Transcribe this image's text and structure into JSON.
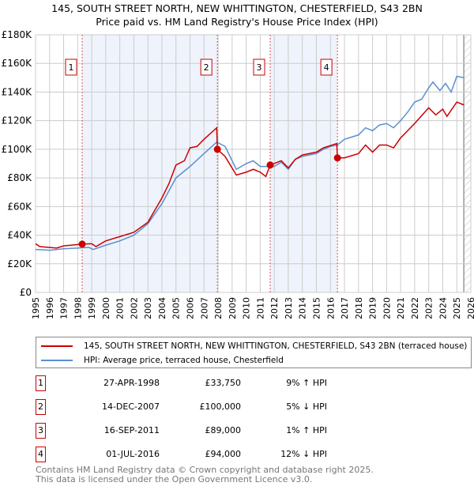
{
  "title_line1": "145, SOUTH STREET NORTH, NEW WHITTINGTON, CHESTERFIELD, S43 2BN",
  "title_line2": "Price paid vs. HM Land Registry's House Price Index (HPI)",
  "chart_data": {
    "type": "line",
    "xlim": [
      1995,
      2026
    ],
    "ylim": [
      0,
      180000
    ],
    "yticks": [
      0,
      20000,
      40000,
      60000,
      80000,
      100000,
      120000,
      140000,
      160000,
      180000
    ],
    "ytick_labels": [
      "£0",
      "£20K",
      "£40K",
      "£60K",
      "£80K",
      "£100K",
      "£120K",
      "£140K",
      "£160K",
      "£180K"
    ],
    "xticks": [
      "1995",
      "1996",
      "1997",
      "1998",
      "1999",
      "2000",
      "2001",
      "2002",
      "2003",
      "2004",
      "2005",
      "2006",
      "2007",
      "2008",
      "2009",
      "2010",
      "2011",
      "2012",
      "2013",
      "2014",
      "2015",
      "2016",
      "2017",
      "2018",
      "2019",
      "2020",
      "2021",
      "2022",
      "2023",
      "2024",
      "2025",
      "2026"
    ],
    "grid": true,
    "colors": {
      "property": "#cc0000",
      "hpi": "#5b8fd0",
      "shade": "#eef3fc"
    },
    "shaded_ranges": [
      [
        1998.32,
        2007.95
      ],
      [
        2011.71,
        2016.5
      ]
    ],
    "future_hatch_from": 2025.5,
    "series": [
      {
        "name": "145, SOUTH STREET NORTH, NEW WHITTINGTON, CHESTERFIELD, S43 2BN (terraced house)",
        "key": "property",
        "points": [
          [
            1995,
            34000
          ],
          [
            1995.3,
            32000
          ],
          [
            1996.5,
            31000
          ],
          [
            1997,
            32500
          ],
          [
            1998.32,
            33750
          ],
          [
            1999,
            34000
          ],
          [
            1999.3,
            32000
          ],
          [
            2000,
            36000
          ],
          [
            2001,
            39000
          ],
          [
            2002,
            42000
          ],
          [
            2003,
            49000
          ],
          [
            2004,
            66000
          ],
          [
            2004.5,
            76000
          ],
          [
            2005,
            89000
          ],
          [
            2005.6,
            92000
          ],
          [
            2006,
            101000
          ],
          [
            2006.5,
            102000
          ],
          [
            2007,
            107000
          ],
          [
            2007.9,
            115000
          ],
          [
            2007.95,
            100000
          ],
          [
            2008.5,
            95000
          ],
          [
            2009.3,
            82000
          ],
          [
            2010,
            84000
          ],
          [
            2010.5,
            86000
          ],
          [
            2011,
            84000
          ],
          [
            2011.4,
            81000
          ],
          [
            2011.71,
            89000
          ],
          [
            2012.5,
            92000
          ],
          [
            2013,
            87000
          ],
          [
            2013.5,
            93000
          ],
          [
            2014,
            96000
          ],
          [
            2015,
            98000
          ],
          [
            2015.5,
            101000
          ],
          [
            2016.45,
            104000
          ],
          [
            2016.5,
            94000
          ],
          [
            2017,
            94000
          ],
          [
            2018,
            97000
          ],
          [
            2018.5,
            103000
          ],
          [
            2019,
            98000
          ],
          [
            2019.5,
            103000
          ],
          [
            2020,
            103000
          ],
          [
            2020.5,
            101000
          ],
          [
            2021,
            108000
          ],
          [
            2022,
            118000
          ],
          [
            2023,
            129000
          ],
          [
            2023.5,
            124000
          ],
          [
            2024,
            128000
          ],
          [
            2024.3,
            123000
          ],
          [
            2025,
            133000
          ],
          [
            2025.5,
            131000
          ]
        ]
      },
      {
        "name": "HPI: Average price, terraced house, Chesterfield",
        "key": "hpi",
        "points": [
          [
            1995,
            30000
          ],
          [
            1996,
            29500
          ],
          [
            1997,
            30500
          ],
          [
            1998,
            31000
          ],
          [
            1998.8,
            31500
          ],
          [
            1999.1,
            30000
          ],
          [
            2000,
            33000
          ],
          [
            2001,
            36000
          ],
          [
            2002,
            40000
          ],
          [
            2003,
            48000
          ],
          [
            2004,
            62000
          ],
          [
            2005,
            80000
          ],
          [
            2006,
            88000
          ],
          [
            2007,
            97000
          ],
          [
            2007.9,
            105000
          ],
          [
            2008.5,
            102000
          ],
          [
            2009.3,
            86000
          ],
          [
            2010,
            90000
          ],
          [
            2010.5,
            92000
          ],
          [
            2011,
            88000
          ],
          [
            2011.7,
            88000
          ],
          [
            2012,
            88000
          ],
          [
            2012.5,
            91000
          ],
          [
            2013,
            86000
          ],
          [
            2013.5,
            93000
          ],
          [
            2014,
            95000
          ],
          [
            2015,
            97000
          ],
          [
            2015.5,
            100000
          ],
          [
            2016,
            102000
          ],
          [
            2016.5,
            103000
          ],
          [
            2017,
            107000
          ],
          [
            2018,
            110000
          ],
          [
            2018.5,
            115000
          ],
          [
            2019,
            113000
          ],
          [
            2019.5,
            117000
          ],
          [
            2020,
            118000
          ],
          [
            2020.5,
            115000
          ],
          [
            2021,
            120000
          ],
          [
            2021.5,
            126000
          ],
          [
            2022,
            133000
          ],
          [
            2022.5,
            135000
          ],
          [
            2023,
            143000
          ],
          [
            2023.3,
            147000
          ],
          [
            2023.8,
            141000
          ],
          [
            2024.2,
            146000
          ],
          [
            2024.6,
            140000
          ],
          [
            2025,
            151000
          ],
          [
            2025.5,
            150000
          ]
        ]
      }
    ],
    "sales": [
      {
        "label": "1",
        "x": 1998.32,
        "price": 33750
      },
      {
        "label": "2",
        "x": 2007.95,
        "price": 100000
      },
      {
        "label": "3",
        "x": 2011.71,
        "price": 89000
      },
      {
        "label": "4",
        "x": 2016.5,
        "price": 94000
      }
    ]
  },
  "legend": [
    {
      "label": "145, SOUTH STREET NORTH, NEW WHITTINGTON, CHESTERFIELD, S43 2BN (terraced house)"
    },
    {
      "label": "HPI: Average price, terraced house, Chesterfield"
    }
  ],
  "transactions": [
    {
      "num": "1",
      "date": "27-APR-1998",
      "price": "£33,750",
      "hpi": "9% ↑ HPI"
    },
    {
      "num": "2",
      "date": "14-DEC-2007",
      "price": "£100,000",
      "hpi": "5% ↓ HPI"
    },
    {
      "num": "3",
      "date": "16-SEP-2011",
      "price": "£89,000",
      "hpi": "1% ↑ HPI"
    },
    {
      "num": "4",
      "date": "01-JUL-2016",
      "price": "£94,000",
      "hpi": "12% ↓ HPI"
    }
  ],
  "footer_line1": "Contains HM Land Registry data © Crown copyright and database right 2025.",
  "footer_line2": "This data is licensed under the Open Government Licence v3.0."
}
